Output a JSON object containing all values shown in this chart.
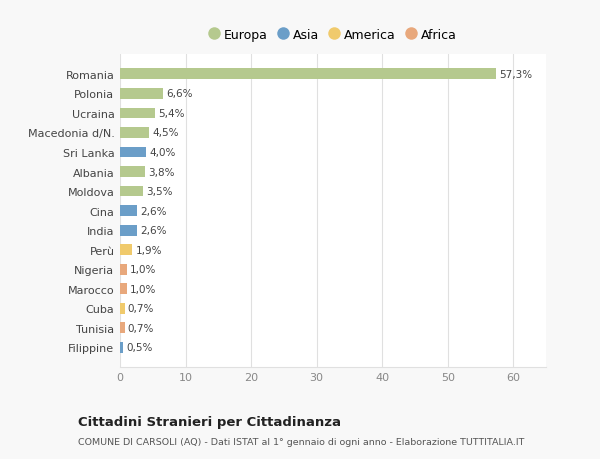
{
  "categories": [
    "Romania",
    "Polonia",
    "Ucraina",
    "Macedonia d/N.",
    "Sri Lanka",
    "Albania",
    "Moldova",
    "Cina",
    "India",
    "Perù",
    "Nigeria",
    "Marocco",
    "Cuba",
    "Tunisia",
    "Filippine"
  ],
  "values": [
    57.3,
    6.6,
    5.4,
    4.5,
    4.0,
    3.8,
    3.5,
    2.6,
    2.6,
    1.9,
    1.0,
    1.0,
    0.7,
    0.7,
    0.5
  ],
  "labels": [
    "57,3%",
    "6,6%",
    "5,4%",
    "4,5%",
    "4,0%",
    "3,8%",
    "3,5%",
    "2,6%",
    "2,6%",
    "1,9%",
    "1,0%",
    "1,0%",
    "0,7%",
    "0,7%",
    "0,5%"
  ],
  "continent": [
    "Europa",
    "Europa",
    "Europa",
    "Europa",
    "Asia",
    "Europa",
    "Europa",
    "Asia",
    "Asia",
    "America",
    "Africa",
    "Africa",
    "America",
    "Africa",
    "Asia"
  ],
  "colors": {
    "Europa": "#b5c98e",
    "Asia": "#6b9ec8",
    "America": "#f0ca6c",
    "Africa": "#e8a87c"
  },
  "legend_order": [
    "Europa",
    "Asia",
    "America",
    "Africa"
  ],
  "legend_colors": [
    "#b5c98e",
    "#6b9ec8",
    "#f0ca6c",
    "#e8a87c"
  ],
  "xlim": [
    0,
    65
  ],
  "xticks": [
    0,
    10,
    20,
    30,
    40,
    50,
    60
  ],
  "title": "Cittadini Stranieri per Cittadinanza",
  "subtitle": "COMUNE DI CARSOLI (AQ) - Dati ISTAT al 1° gennaio di ogni anno - Elaborazione TUTTITALIA.IT",
  "fig_bg_color": "#f8f8f8",
  "plot_bg_color": "#ffffff",
  "grid_color": "#e0e0e0",
  "label_color": "#555555",
  "tick_color": "#888888"
}
